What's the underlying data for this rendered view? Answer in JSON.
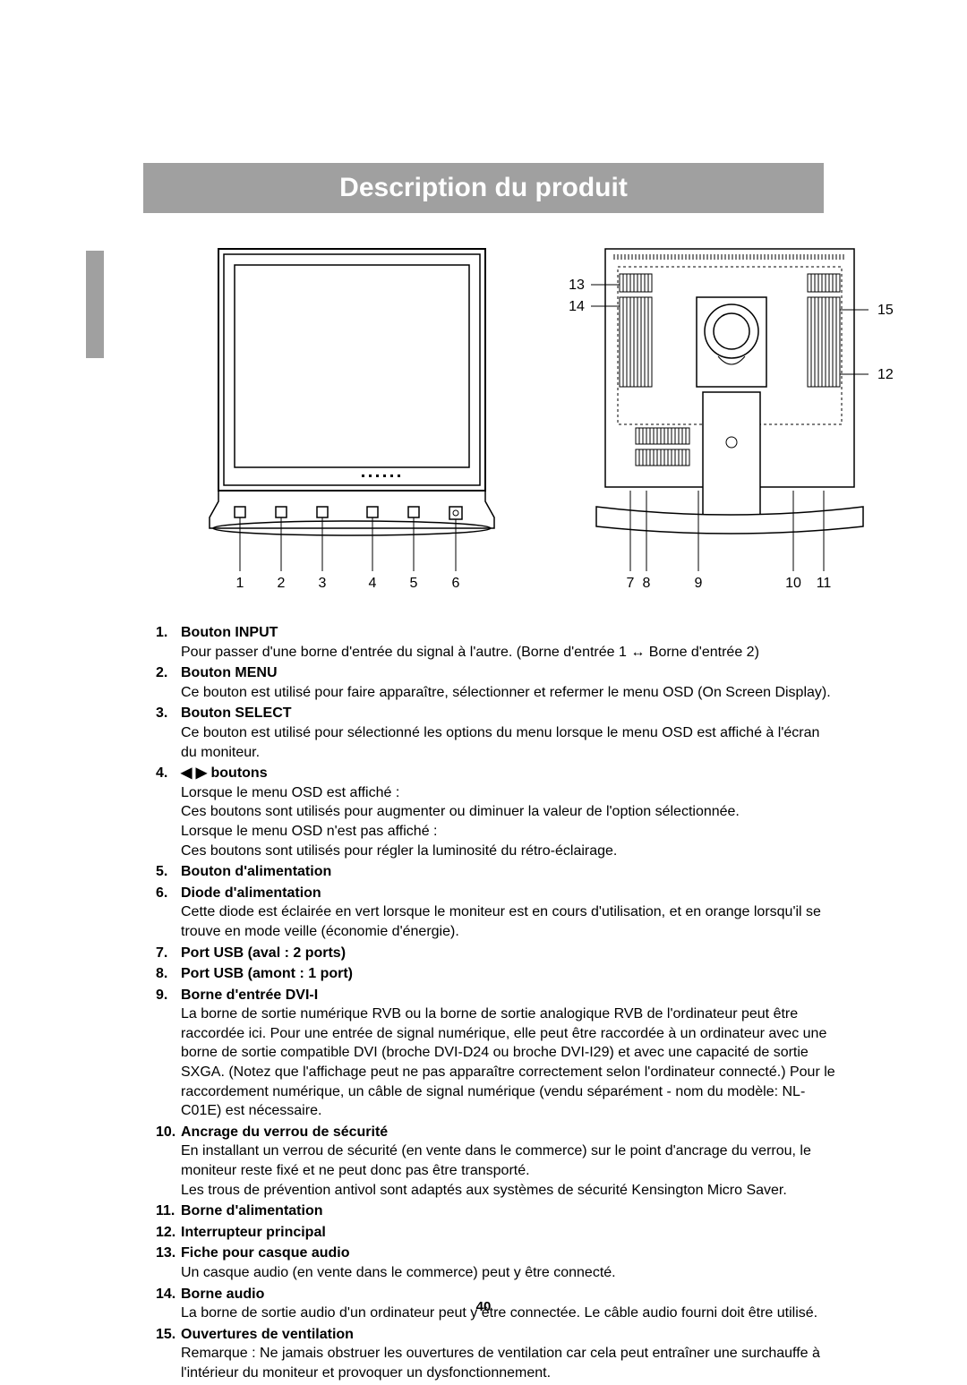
{
  "title": "Description du produit",
  "page_number": "40",
  "colors": {
    "title_bg": "#a0a0a0",
    "title_text": "#ffffff",
    "body_text": "#000000",
    "page_bg": "#ffffff",
    "diagram_stroke": "#000000"
  },
  "fonts": {
    "title_size_pt": 22,
    "body_size_pt": 12
  },
  "front_diagram": {
    "callouts": [
      "1",
      "2",
      "3",
      "4",
      "5",
      "6"
    ]
  },
  "back_diagram": {
    "callouts_bottom": [
      "7",
      "8",
      "9",
      "10",
      "11"
    ],
    "callouts_left": [
      "13",
      "14"
    ],
    "callouts_right": [
      "15",
      "12"
    ]
  },
  "items": [
    {
      "num": "1.",
      "title": "Bouton INPUT",
      "desc": [
        "Pour passer d'une borne d'entrée du signal à l'autre. (Borne d'entrée 1 ↔ Borne d'entrée 2)"
      ]
    },
    {
      "num": "2.",
      "title": "Bouton MENU",
      "desc": [
        "Ce bouton est utilisé pour faire apparaître, sélectionner et refermer le menu OSD (On Screen Display)."
      ]
    },
    {
      "num": "3.",
      "title": "Bouton SELECT",
      "desc": [
        "Ce bouton est utilisé pour sélectionné les options du menu lorsque le menu OSD est affiché à l'écran du moniteur."
      ]
    },
    {
      "num": "4.",
      "title": "◀ ▶ boutons",
      "desc": [
        "Lorsque le menu OSD est affiché :",
        "  Ces boutons sont utilisés pour augmenter ou diminuer la valeur de l'option sélectionnée.",
        "Lorsque le menu OSD n'est pas affiché :",
        "  Ces boutons sont utilisés pour régler la luminosité du rétro-éclairage."
      ]
    },
    {
      "num": "5.",
      "title": "Bouton d'alimentation",
      "desc": []
    },
    {
      "num": "6.",
      "title": "Diode d'alimentation",
      "desc": [
        "Cette diode est éclairée en vert lorsque le moniteur est en cours d'utilisation, et en orange lorsqu'il se trouve en mode veille (économie d'énergie)."
      ]
    },
    {
      "num": "7.",
      "title": "Port USB (aval : 2 ports)",
      "desc": []
    },
    {
      "num": "8.",
      "title": "Port USB (amont : 1 port)",
      "desc": []
    },
    {
      "num": "9.",
      "title": "Borne d'entrée DVI-I",
      "desc": [
        "La borne de sortie numérique RVB ou la borne de sortie analogique RVB de l'ordinateur peut être raccordée ici. Pour une entrée de signal numérique, elle peut être raccordée à un ordinateur avec une borne de sortie compatible DVI (broche DVI-D24 ou broche DVI-I29) et avec une capacité de sortie SXGA. (Notez que l'affichage peut ne pas apparaître correctement selon l'ordinateur connecté.) Pour le raccordement numérique, un câble de signal numérique (vendu séparément - nom du modèle: NL-C01E) est nécessaire."
      ]
    },
    {
      "num": "10.",
      "title": "Ancrage du verrou de sécurité",
      "desc": [
        "En installant un verrou de sécurité (en vente dans le commerce) sur le point d'ancrage du verrou, le moniteur reste fixé et ne peut donc pas être transporté.",
        "Les trous de prévention antivol sont adaptés aux systèmes de sécurité Kensington Micro Saver."
      ]
    },
    {
      "num": "11.",
      "title": "Borne d'alimentation",
      "desc": []
    },
    {
      "num": "12.",
      "title": "Interrupteur principal",
      "desc": []
    },
    {
      "num": "13.",
      "title": "Fiche pour casque audio",
      "desc": [
        "Un casque audio (en vente dans le commerce) peut y être connecté."
      ]
    },
    {
      "num": "14.",
      "title": "Borne audio",
      "desc": [
        "La borne de sortie audio d'un ordinateur peut y être connectée. Le câble audio fourni doit être utilisé."
      ]
    },
    {
      "num": "15.",
      "title": "Ouvertures de ventilation",
      "desc": [
        "Remarque : Ne jamais obstruer les ouvertures de ventilation car cela peut entraîner une surchauffe à l'intérieur du moniteur et provoquer un dysfonctionnement."
      ]
    }
  ]
}
